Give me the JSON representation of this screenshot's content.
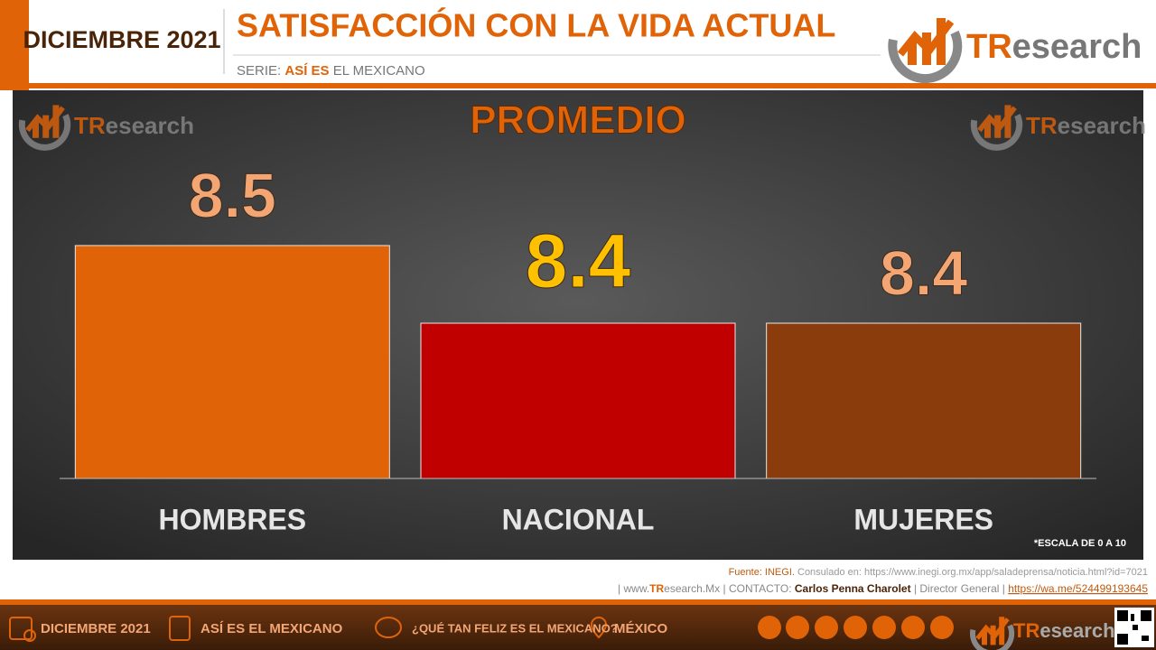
{
  "header": {
    "date": "DICIEMBRE 2021",
    "title": "SATISFACCIÓN CON LA VIDA ACTUAL",
    "series_prefix": "SERIE:",
    "series_bold": "ASÍ ES",
    "series_rest": "EL MEXICANO",
    "logo_tr": "TR",
    "logo_rest": "esearch"
  },
  "chart_data": {
    "type": "bar",
    "title": "PROMEDIO",
    "categories": [
      "HOMBRES",
      "NACIONAL",
      "MUJERES"
    ],
    "values": [
      8.5,
      8.4,
      8.4
    ],
    "colors": [
      "#e06308",
      "#c00000",
      "#8b3c0c"
    ],
    "label_colors": [
      "#f4a574",
      "#ffc000",
      "#f4a574"
    ],
    "ylim": [
      8.2,
      8.7
    ],
    "note": "*ESCALA DE 0 A 10"
  },
  "footer": {
    "source_label": "Fuente: INEGI.",
    "source_text": "Consulado en: https://www.inegi.org.mx/app/saladeprensa/noticia.html?id=7021",
    "site_pre": "| www.",
    "site_tr": "TR",
    "site_post": "esearch.Mx",
    "contact_label": "| CONTACTO:",
    "contact_name": "Carlos Penna Charolet",
    "contact_role": "| Director General |",
    "contact_link": "https://wa.me/524499193645"
  },
  "bottom_bar": {
    "items": [
      "DICIEMBRE 2021",
      "ASÍ ES EL MEXICANO",
      "¿QUÉ TAN FELIZ ES EL MEXICANO?",
      "MÉXICO"
    ]
  }
}
